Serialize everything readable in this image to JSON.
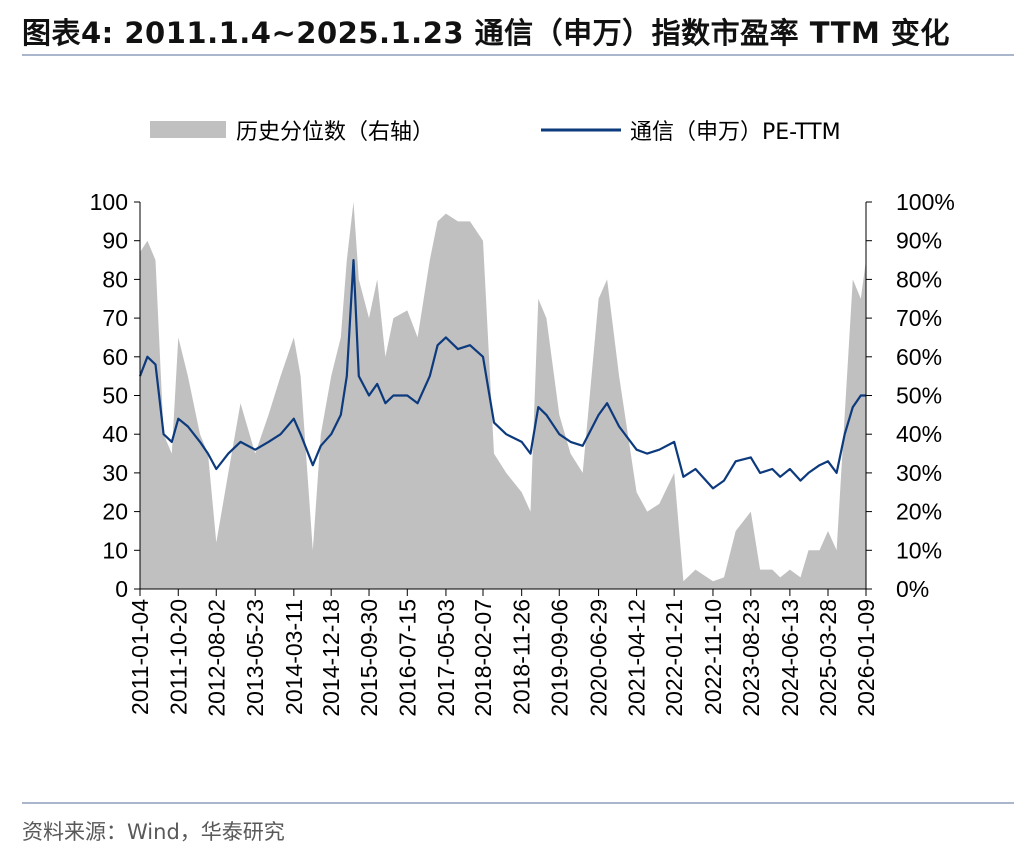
{
  "header": {
    "title": "图表4:  2011.1.4~2025.1.23 通信（申万）指数市盈率 TTM 变化"
  },
  "footer": {
    "source": "资料来源：Wind，华泰研究"
  },
  "colors": {
    "area": "#c0c0c0",
    "line": "#0c3a7d",
    "rule": "#a9b6cc"
  },
  "chart_data": {
    "type": "line+area",
    "legend": {
      "placement": "top",
      "items": [
        "历史分位数（右轴）",
        "通信（申万）PE-TTM"
      ]
    },
    "y_left": {
      "min": 0,
      "max": 100,
      "ticks": [
        "0",
        "10",
        "20",
        "30",
        "40",
        "50",
        "60",
        "70",
        "80",
        "90",
        "100"
      ]
    },
    "y_right": {
      "min": 0,
      "max": 1,
      "ticks": [
        "0%",
        "10%",
        "20%",
        "30%",
        "40%",
        "50%",
        "60%",
        "70%",
        "80%",
        "90%",
        "100%"
      ]
    },
    "x_ticks": [
      "2011-01-04",
      "2011-10-20",
      "2012-08-02",
      "2013-05-23",
      "2014-03-11",
      "2014-12-18",
      "2015-09-30",
      "2016-07-15",
      "2017-05-03",
      "2018-02-07",
      "2018-11-26",
      "2019-09-06",
      "2020-06-29",
      "2021-04-12",
      "2022-01-21",
      "2022-11-10",
      "2023-08-23",
      "2024-06-13",
      "2025-03-28",
      "2026-01-09"
    ],
    "grid": false,
    "series": [
      {
        "name": "通信（申万）PE-TTM",
        "axis": "left",
        "style": "line",
        "x": [
          "2011-01-04",
          "2011-03-01",
          "2011-05-01",
          "2011-07-01",
          "2011-09-01",
          "2011-10-20",
          "2012-01-01",
          "2012-04-01",
          "2012-06-01",
          "2012-08-02",
          "2012-11-01",
          "2013-02-01",
          "2013-05-23",
          "2013-09-01",
          "2013-12-01",
          "2014-03-11",
          "2014-05-01",
          "2014-08-01",
          "2014-10-01",
          "2014-12-18",
          "2015-03-01",
          "2015-04-15",
          "2015-06-05",
          "2015-07-15",
          "2015-09-30",
          "2015-12-01",
          "2016-02-01",
          "2016-04-01",
          "2016-07-15",
          "2016-10-01",
          "2017-01-01",
          "2017-03-01",
          "2017-05-03",
          "2017-08-01",
          "2017-11-01",
          "2018-02-07",
          "2018-05-01",
          "2018-08-01",
          "2018-11-26",
          "2019-02-01",
          "2019-04-01",
          "2019-06-01",
          "2019-09-06",
          "2019-12-01",
          "2020-03-01",
          "2020-06-29",
          "2020-09-01",
          "2020-12-01",
          "2021-04-12",
          "2021-07-01",
          "2021-10-01",
          "2022-01-21",
          "2022-04-01",
          "2022-07-01",
          "2022-11-10",
          "2023-02-01",
          "2023-05-01",
          "2023-08-23",
          "2023-11-01",
          "2024-02-01",
          "2024-04-01",
          "2024-06-13",
          "2024-09-01",
          "2024-11-01",
          "2025-01-23",
          "2025-03-28",
          "2025-06-01",
          "2025-08-01",
          "2025-10-01",
          "2025-12-01",
          "2026-01-09"
        ],
        "values": [
          55,
          60,
          58,
          40,
          38,
          44,
          42,
          38,
          35,
          31,
          35,
          38,
          36,
          38,
          40,
          44,
          40,
          32,
          37,
          40,
          45,
          55,
          85,
          55,
          50,
          53,
          48,
          50,
          50,
          48,
          55,
          63,
          65,
          62,
          63,
          60,
          43,
          40,
          38,
          35,
          47,
          45,
          40,
          38,
          37,
          45,
          48,
          42,
          36,
          35,
          36,
          38,
          29,
          31,
          26,
          28,
          33,
          34,
          30,
          31,
          29,
          31,
          28,
          30,
          32,
          33,
          30,
          40,
          47,
          50,
          50
        ]
      },
      {
        "name": "历史分位数（右轴）",
        "axis": "right",
        "style": "area",
        "x": [
          "2011-01-04",
          "2011-03-01",
          "2011-05-01",
          "2011-07-01",
          "2011-09-01",
          "2011-10-20",
          "2012-01-01",
          "2012-04-01",
          "2012-06-01",
          "2012-08-02",
          "2012-11-01",
          "2013-02-01",
          "2013-05-23",
          "2013-09-01",
          "2013-12-01",
          "2014-03-11",
          "2014-05-01",
          "2014-08-01",
          "2014-10-01",
          "2014-12-18",
          "2015-03-01",
          "2015-04-15",
          "2015-06-05",
          "2015-07-15",
          "2015-09-30",
          "2015-12-01",
          "2016-02-01",
          "2016-04-01",
          "2016-07-15",
          "2016-10-01",
          "2017-01-01",
          "2017-03-01",
          "2017-05-03",
          "2017-08-01",
          "2017-11-01",
          "2018-02-07",
          "2018-05-01",
          "2018-08-01",
          "2018-11-26",
          "2019-02-01",
          "2019-04-01",
          "2019-06-01",
          "2019-09-06",
          "2019-12-01",
          "2020-03-01",
          "2020-06-29",
          "2020-09-01",
          "2020-12-01",
          "2021-04-12",
          "2021-07-01",
          "2021-10-01",
          "2022-01-21",
          "2022-04-01",
          "2022-07-01",
          "2022-11-10",
          "2023-02-01",
          "2023-05-01",
          "2023-08-23",
          "2023-11-01",
          "2024-02-01",
          "2024-04-01",
          "2024-06-13",
          "2024-09-01",
          "2024-11-01",
          "2025-01-23",
          "2025-03-28",
          "2025-06-01",
          "2025-08-01",
          "2025-10-01",
          "2025-12-01",
          "2026-01-09"
        ],
        "values": [
          0.87,
          0.9,
          0.85,
          0.4,
          0.35,
          0.65,
          0.55,
          0.4,
          0.35,
          0.12,
          0.3,
          0.48,
          0.35,
          0.45,
          0.55,
          0.65,
          0.55,
          0.1,
          0.4,
          0.55,
          0.65,
          0.85,
          1.0,
          0.8,
          0.7,
          0.8,
          0.6,
          0.7,
          0.72,
          0.65,
          0.85,
          0.95,
          0.97,
          0.95,
          0.95,
          0.9,
          0.35,
          0.3,
          0.25,
          0.2,
          0.75,
          0.7,
          0.45,
          0.35,
          0.3,
          0.75,
          0.8,
          0.55,
          0.25,
          0.2,
          0.22,
          0.3,
          0.02,
          0.05,
          0.02,
          0.03,
          0.15,
          0.2,
          0.05,
          0.05,
          0.03,
          0.05,
          0.03,
          0.1,
          0.1,
          0.15,
          0.1,
          0.45,
          0.8,
          0.75,
          0.85
        ]
      }
    ]
  }
}
